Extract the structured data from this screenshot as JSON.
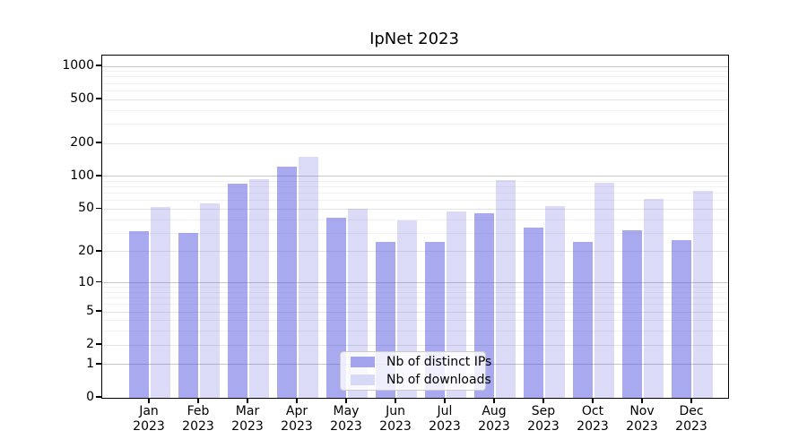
{
  "chart_data": {
    "type": "bar",
    "title": "IpNet 2023",
    "categories": [
      "Jan",
      "Feb",
      "Mar",
      "Apr",
      "May",
      "Jun",
      "Jul",
      "Aug",
      "Sep",
      "Oct",
      "Nov",
      "Dec"
    ],
    "year_label": "2023",
    "series": [
      {
        "name": "Nb of distinct IPs",
        "values": [
          31,
          30,
          85,
          123,
          42,
          25,
          25,
          46,
          34,
          25,
          32,
          26
        ],
        "swatch_color": "#a3a3ee",
        "fill": "rgba(90,90,225,0.52)"
      },
      {
        "name": "Nb of downloads",
        "values": [
          52,
          57,
          95,
          150,
          50,
          39,
          48,
          92,
          53,
          88,
          62,
          74
        ],
        "swatch_color": "#d8d8f7",
        "fill": "rgba(90,90,225,0.22)"
      }
    ],
    "yscale": "symlog (log1p)",
    "yticks": [
      0,
      1,
      2,
      5,
      10,
      20,
      50,
      100,
      200,
      500,
      1000
    ],
    "ytick_labels": [
      "0",
      "1",
      "2",
      "5",
      "10",
      "20",
      "50",
      "100",
      "200",
      "500",
      "1000"
    ],
    "ylim": [
      0,
      1250
    ],
    "xlabel": "",
    "ylabel": "",
    "grid": "both",
    "legend_position": "lower center"
  },
  "colors": {
    "bar_dark": "#a3a3ee",
    "bar_light": "#d8d8f7",
    "grid_major": "#c7c7c7",
    "grid_minor": "#f1f1f1",
    "axis": "#000000",
    "background": "#ffffff"
  }
}
